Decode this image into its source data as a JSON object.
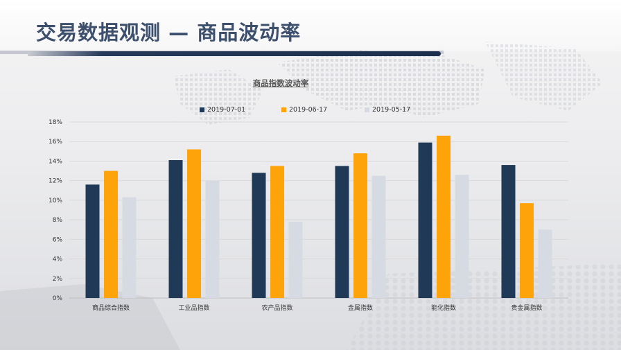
{
  "header": {
    "title": "交易数据观测 — 商品波动率"
  },
  "colors": {
    "accent_dark": "#1c2f4e",
    "title_color": "#3c4f6c"
  },
  "chart_data": {
    "type": "bar",
    "title": "商品指数波动率",
    "categories": [
      "商品综合指数",
      "工业品指数",
      "农产品指数",
      "金属指数",
      "能化指数",
      "贵金属指数"
    ],
    "series": [
      {
        "name": "2019-07-01",
        "color": "#1f3956",
        "values": [
          11.6,
          14.1,
          12.8,
          13.5,
          15.9,
          13.6
        ]
      },
      {
        "name": "2019-06-17",
        "color": "#ffa30b",
        "values": [
          13.0,
          15.2,
          13.5,
          14.8,
          16.6,
          9.7
        ]
      },
      {
        "name": "2019-05-17",
        "color": "#d6dbe3",
        "values": [
          10.3,
          12.0,
          7.8,
          12.5,
          12.6,
          7.0
        ]
      }
    ],
    "y_ticks": [
      "0%",
      "2%",
      "4%",
      "6%",
      "8%",
      "10%",
      "12%",
      "14%",
      "16%",
      "18%"
    ],
    "ylim": [
      0,
      18
    ],
    "y_unit": "%",
    "grid": true,
    "legend_position": "top"
  }
}
